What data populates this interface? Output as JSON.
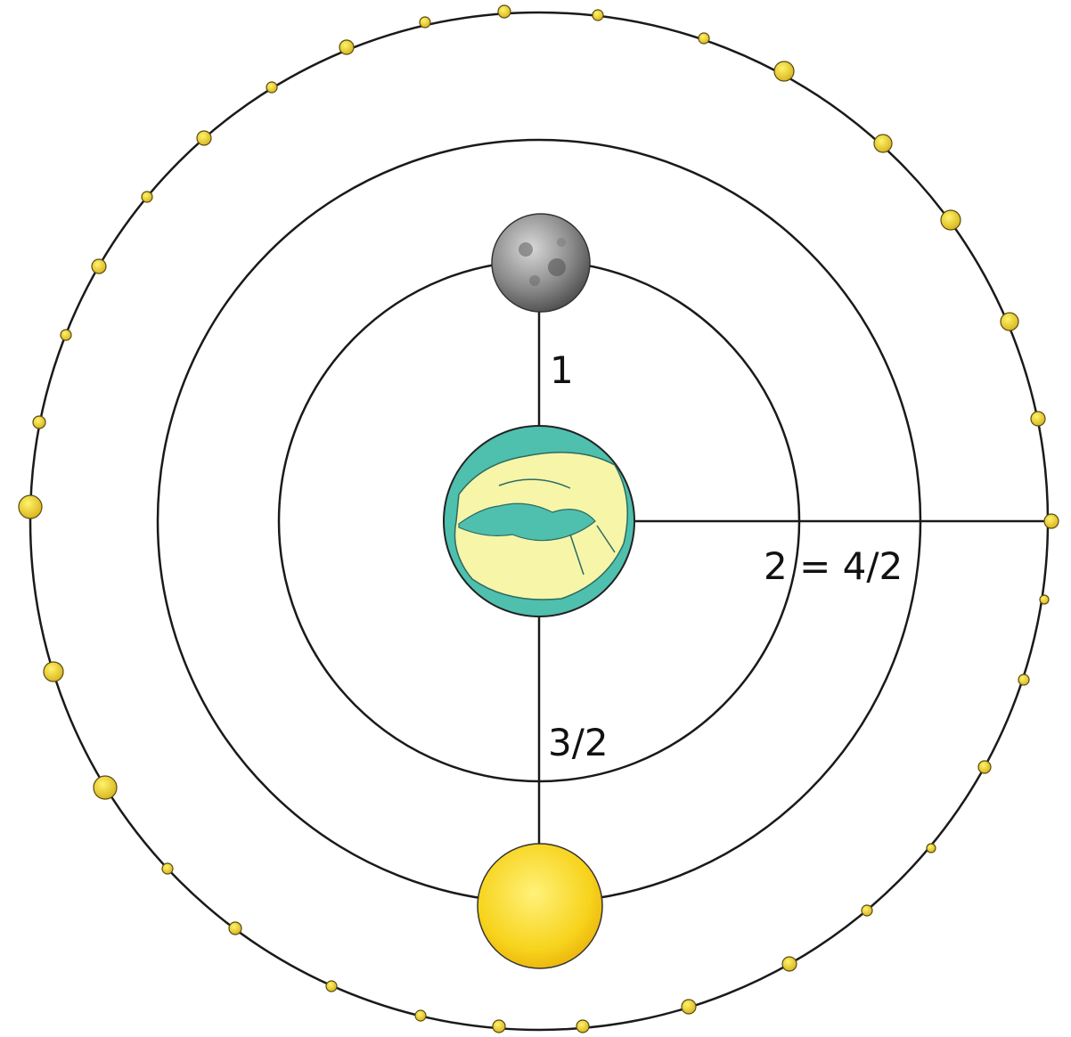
{
  "labels": {
    "moon_distance": "1",
    "sun_distance": "3/2",
    "stars_distance": "2 = 4/2"
  }
}
